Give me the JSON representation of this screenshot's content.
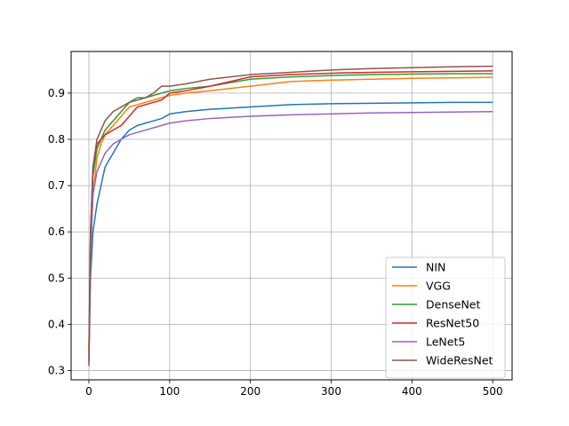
{
  "chart_data": {
    "type": "line",
    "title": "",
    "xlabel": "",
    "ylabel": "",
    "xlim": [
      -22,
      524
    ],
    "ylim": [
      0.28,
      0.99
    ],
    "grid": true,
    "legend_position": "lower-right",
    "x_ticks": [
      0,
      100,
      200,
      300,
      400,
      500
    ],
    "x_tick_labels": [
      "0",
      "100",
      "200",
      "300",
      "400",
      "500"
    ],
    "y_ticks": [
      0.3,
      0.4,
      0.5,
      0.6,
      0.7,
      0.8,
      0.9
    ],
    "y_tick_labels": [
      "0.3",
      "0.4",
      "0.5",
      "0.6",
      "0.7",
      "0.8",
      "0.9"
    ],
    "series": [
      {
        "name": "NIN",
        "color": "#1f77b4",
        "x": [
          0,
          2,
          5,
          10,
          15,
          20,
          30,
          40,
          50,
          60,
          70,
          80,
          90,
          100,
          120,
          150,
          200,
          250,
          300,
          350,
          400,
          450,
          500
        ],
        "y": [
          0.32,
          0.5,
          0.6,
          0.66,
          0.7,
          0.74,
          0.77,
          0.8,
          0.82,
          0.83,
          0.835,
          0.84,
          0.845,
          0.855,
          0.86,
          0.865,
          0.87,
          0.875,
          0.877,
          0.878,
          0.879,
          0.88,
          0.88
        ]
      },
      {
        "name": "VGG",
        "color": "#ff7f0e",
        "x": [
          0,
          2,
          5,
          10,
          15,
          20,
          30,
          40,
          50,
          60,
          70,
          80,
          90,
          100,
          120,
          150,
          200,
          250,
          300,
          350,
          400,
          450,
          500
        ],
        "y": [
          0.33,
          0.55,
          0.68,
          0.76,
          0.79,
          0.81,
          0.83,
          0.85,
          0.87,
          0.875,
          0.88,
          0.885,
          0.89,
          0.895,
          0.9,
          0.905,
          0.915,
          0.925,
          0.928,
          0.93,
          0.932,
          0.933,
          0.934
        ]
      },
      {
        "name": "DenseNet",
        "color": "#2ca02c",
        "x": [
          0,
          2,
          5,
          10,
          15,
          20,
          30,
          40,
          50,
          60,
          70,
          80,
          90,
          100,
          120,
          150,
          200,
          250,
          300,
          350,
          400,
          450,
          500
        ],
        "y": [
          0.35,
          0.6,
          0.72,
          0.78,
          0.8,
          0.82,
          0.84,
          0.86,
          0.88,
          0.89,
          0.89,
          0.895,
          0.9,
          0.905,
          0.91,
          0.915,
          0.93,
          0.935,
          0.938,
          0.94,
          0.941,
          0.942,
          0.942
        ]
      },
      {
        "name": "ResNet50",
        "color": "#d62728",
        "x": [
          0,
          2,
          5,
          10,
          15,
          20,
          30,
          40,
          50,
          60,
          70,
          80,
          90,
          100,
          120,
          150,
          200,
          250,
          300,
          350,
          400,
          450,
          500
        ],
        "y": [
          0.34,
          0.58,
          0.74,
          0.79,
          0.8,
          0.81,
          0.82,
          0.83,
          0.85,
          0.87,
          0.875,
          0.88,
          0.885,
          0.9,
          0.905,
          0.915,
          0.935,
          0.94,
          0.943,
          0.945,
          0.946,
          0.947,
          0.948
        ]
      },
      {
        "name": "LeNet5",
        "color": "#9467bd",
        "x": [
          0,
          2,
          5,
          10,
          15,
          20,
          30,
          40,
          50,
          60,
          70,
          80,
          90,
          100,
          120,
          150,
          200,
          250,
          300,
          350,
          400,
          450,
          500
        ],
        "y": [
          0.32,
          0.55,
          0.68,
          0.73,
          0.75,
          0.77,
          0.79,
          0.8,
          0.81,
          0.815,
          0.82,
          0.825,
          0.83,
          0.835,
          0.84,
          0.845,
          0.85,
          0.853,
          0.855,
          0.857,
          0.858,
          0.859,
          0.86
        ]
      },
      {
        "name": "WideResNet",
        "color": "#8c564b",
        "x": [
          0,
          2,
          5,
          10,
          15,
          20,
          30,
          40,
          50,
          60,
          70,
          80,
          90,
          100,
          120,
          150,
          200,
          250,
          300,
          350,
          400,
          450,
          500
        ],
        "y": [
          0.31,
          0.6,
          0.74,
          0.8,
          0.82,
          0.84,
          0.86,
          0.87,
          0.88,
          0.885,
          0.89,
          0.9,
          0.915,
          0.915,
          0.92,
          0.93,
          0.94,
          0.945,
          0.95,
          0.953,
          0.955,
          0.957,
          0.958
        ]
      }
    ]
  }
}
